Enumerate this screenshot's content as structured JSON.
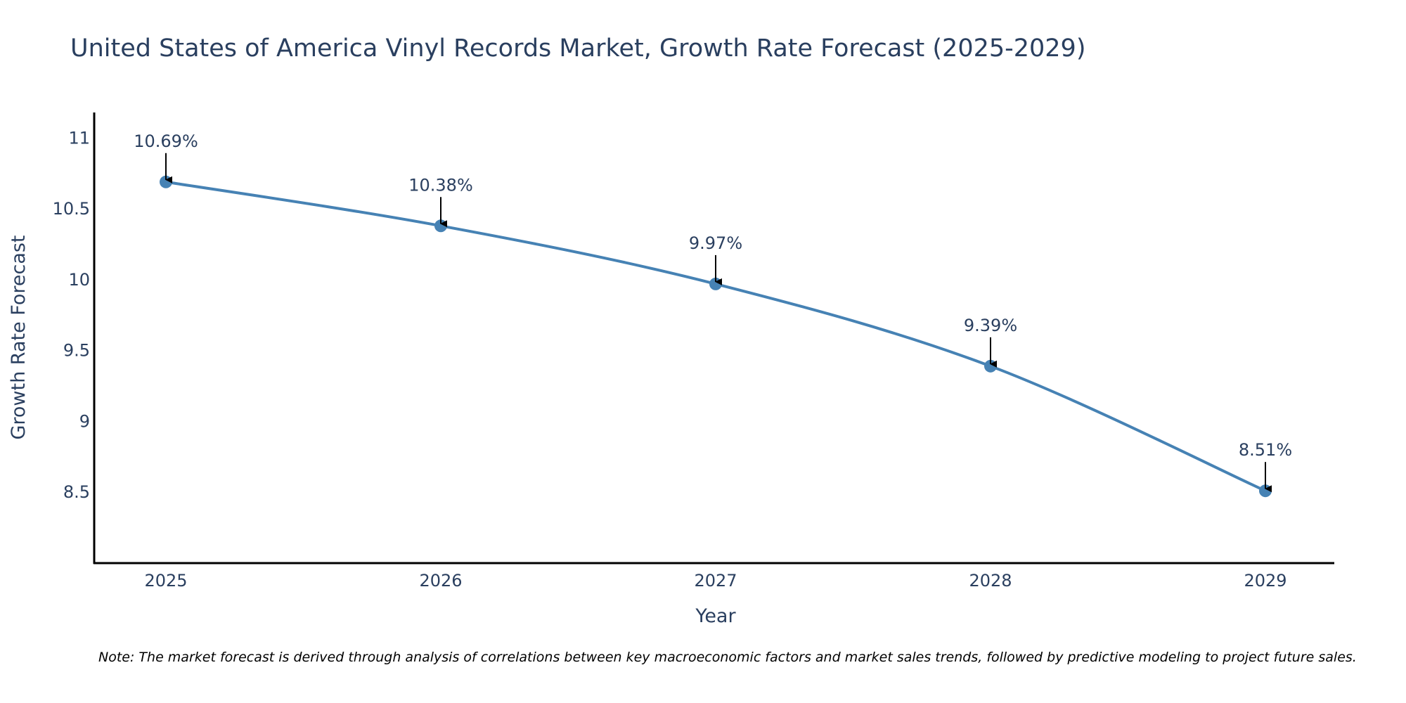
{
  "chart_data": {
    "type": "line",
    "title": "United States of America Vinyl Records Market, Growth Rate Forecast (2025-2029)",
    "xlabel": "Year",
    "ylabel": "Growth Rate Forecast",
    "categories": [
      "2025",
      "2026",
      "2027",
      "2028",
      "2029"
    ],
    "series": [
      {
        "name": "Growth Rate Forecast",
        "values": [
          10.69,
          10.38,
          9.97,
          9.39,
          8.51
        ]
      }
    ],
    "data_labels": [
      "10.69%",
      "10.38%",
      "9.97%",
      "9.39%",
      "8.51%"
    ],
    "y_ticks": [
      8.5,
      9,
      9.5,
      10,
      10.5,
      11
    ],
    "y_tick_labels": [
      "8.5",
      "9",
      "9.5",
      "10",
      "10.5",
      "11"
    ],
    "ylim": [
      8.0,
      11.18
    ],
    "grid": false,
    "line_color": "#4682b4",
    "marker_color": "#4682b4",
    "annotation_arrow_color": "#000000"
  },
  "note": "Note: The market forecast is derived through analysis of correlations between key macroeconomic factors and market sales trends, followed by predictive modeling to project future sales."
}
